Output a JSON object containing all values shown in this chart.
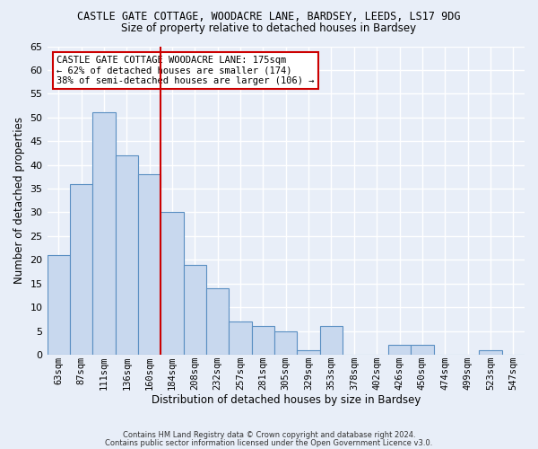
{
  "title": "CASTLE GATE COTTAGE, WOODACRE LANE, BARDSEY, LEEDS, LS17 9DG",
  "subtitle": "Size of property relative to detached houses in Bardsey",
  "xlabel": "Distribution of detached houses by size in Bardsey",
  "ylabel": "Number of detached properties",
  "categories": [
    "63sqm",
    "87sqm",
    "111sqm",
    "136sqm",
    "160sqm",
    "184sqm",
    "208sqm",
    "232sqm",
    "257sqm",
    "281sqm",
    "305sqm",
    "329sqm",
    "353sqm",
    "378sqm",
    "402sqm",
    "426sqm",
    "450sqm",
    "474sqm",
    "499sqm",
    "523sqm",
    "547sqm"
  ],
  "values": [
    21,
    36,
    51,
    42,
    38,
    30,
    19,
    14,
    7,
    6,
    5,
    1,
    6,
    0,
    0,
    2,
    2,
    0,
    0,
    1,
    0
  ],
  "bar_color": "#c8d8ee",
  "bar_edge_color": "#5a8fc2",
  "vline_color": "#cc0000",
  "ylim": [
    0,
    65
  ],
  "yticks": [
    0,
    5,
    10,
    15,
    20,
    25,
    30,
    35,
    40,
    45,
    50,
    55,
    60,
    65
  ],
  "annotation_title": "CASTLE GATE COTTAGE WOODACRE LANE: 175sqm",
  "annotation_line2": "← 62% of detached houses are smaller (174)",
  "annotation_line3": "38% of semi-detached houses are larger (106) →",
  "annotation_box_color": "white",
  "annotation_box_edge": "#cc0000",
  "footer1": "Contains HM Land Registry data © Crown copyright and database right 2024.",
  "footer2": "Contains public sector information licensed under the Open Government Licence v3.0.",
  "bg_color": "#e8eef8",
  "plot_bg_color": "#e8eef8",
  "grid_color": "#ffffff"
}
